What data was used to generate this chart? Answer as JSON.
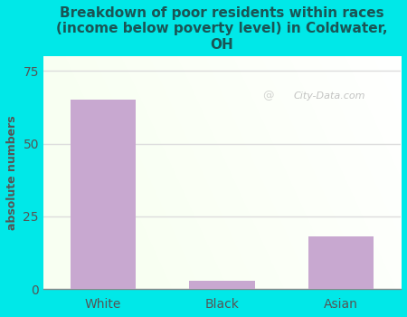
{
  "categories": [
    "White",
    "Black",
    "Asian"
  ],
  "values": [
    65,
    3,
    18
  ],
  "bar_color": "#c8a8d0",
  "title": "Breakdown of poor residents within races\n(income below poverty level) in Coldwater,\nOH",
  "ylabel": "absolute numbers",
  "ylim": [
    0,
    80
  ],
  "yticks": [
    0,
    25,
    50,
    75
  ],
  "title_color": "#1a5555",
  "title_fontsize": 11,
  "bg_color": "#00e8e8",
  "ylabel_color": "#555555",
  "tick_color": "#555555",
  "watermark": "City-Data.com",
  "grid_color": "#dddddd",
  "bar_width": 0.55
}
